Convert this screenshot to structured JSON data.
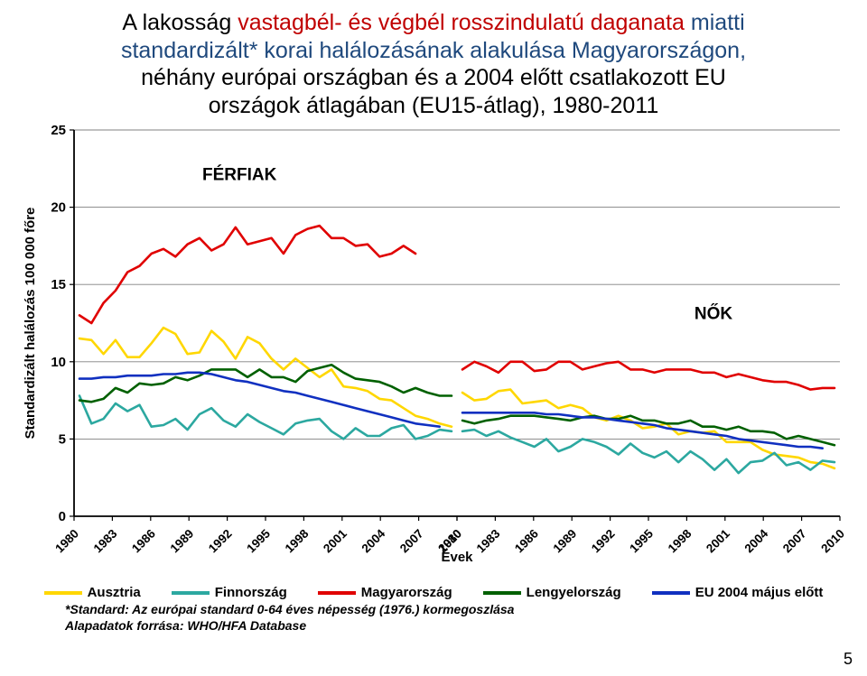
{
  "title_parts": [
    {
      "text": "A lakosság ",
      "color": "#000000"
    },
    {
      "text": "vastagbél- és végbél rosszindulatú daganata",
      "color": "#c00000"
    },
    {
      "text": " miatti",
      "color": "#1f497d"
    },
    {
      "text_break": true
    },
    {
      "text": "standardizált* korai halálozásának alakulása Magyarországon,",
      "color": "#1f497d"
    },
    {
      "text_break": true
    },
    {
      "text": "néhány európai országban ",
      "color": "#000000"
    },
    {
      "text": "és a 2004 előtt csatlakozott EU",
      "color": "#000000"
    },
    {
      "text_break": true
    },
    {
      "text": "országok átlagában (EU15-átlag), 1980-2011",
      "color": "#000000"
    }
  ],
  "axis": {
    "y_label": "Standardizált halálozás 100 000 főre",
    "x_label": "Évek",
    "ylim": [
      0,
      25
    ],
    "ytick_step": 5,
    "y_ticks": [
      0,
      5,
      10,
      15,
      20,
      25
    ],
    "grid_color": "#808080",
    "axis_color": "#000000",
    "tick_font": 15
  },
  "panels": {
    "left_label": "FÉRFIAK",
    "right_label": "NŐK"
  },
  "x_years": [
    1980,
    1983,
    1986,
    1989,
    1992,
    1995,
    1998,
    2001,
    2004,
    2007,
    2010
  ],
  "legend": [
    {
      "name": "Ausztria",
      "color": "#ffd700"
    },
    {
      "name": "Finnország",
      "color": "#2ca8a0"
    },
    {
      "name": "Magyarország",
      "color": "#e00000"
    },
    {
      "name": "Lengyelország",
      "color": "#006000"
    },
    {
      "name": "EU 2004 május előtt",
      "color": "#1030c0"
    }
  ],
  "series_style": {
    "line_width": 2.6,
    "axis_width": 1.8,
    "grid_width": 0.9
  },
  "series": {
    "left": {
      "Ausztria": [
        11.5,
        11.4,
        10.5,
        11.4,
        10.3,
        10.3,
        11.2,
        12.2,
        11.8,
        10.5,
        10.6,
        12.0,
        11.3,
        10.2,
        11.6,
        11.2,
        10.2,
        9.5,
        10.2,
        9.6,
        9.0,
        9.5,
        8.4,
        8.3,
        8.1,
        7.6,
        7.5,
        7.0,
        6.5,
        6.3,
        6.0,
        5.8
      ],
      "Finnország": [
        7.8,
        6.0,
        6.3,
        7.3,
        6.8,
        7.2,
        5.8,
        5.9,
        6.3,
        5.6,
        6.6,
        7.0,
        6.2,
        5.8,
        6.6,
        6.1,
        5.7,
        5.3,
        6.0,
        6.2,
        6.3,
        5.5,
        5.0,
        5.7,
        5.2,
        5.2,
        5.7,
        5.9,
        5.0,
        5.2,
        5.6,
        5.5
      ],
      "Magyarország": [
        13.0,
        12.5,
        13.8,
        14.6,
        15.8,
        16.2,
        17.0,
        17.3,
        16.8,
        17.6,
        18.0,
        17.2,
        17.6,
        18.7,
        17.6,
        17.8,
        18.0,
        17.0,
        18.2,
        18.6,
        18.8,
        18.0,
        18.0,
        17.5,
        17.6,
        16.8,
        17.0,
        17.5,
        17.0
      ],
      "Lengyelország": [
        7.5,
        7.4,
        7.6,
        8.3,
        8.0,
        8.6,
        8.5,
        8.6,
        9.0,
        8.8,
        9.1,
        9.5,
        9.5,
        9.5,
        9.0,
        9.5,
        9.0,
        9.0,
        8.7,
        9.4,
        9.6,
        9.8,
        9.3,
        8.9,
        8.8,
        8.7,
        8.4,
        8.0,
        8.3,
        8.0,
        7.8,
        7.8
      ],
      "EU2004": [
        8.9,
        8.9,
        9.0,
        9.0,
        9.1,
        9.1,
        9.1,
        9.2,
        9.2,
        9.3,
        9.3,
        9.2,
        9.0,
        8.8,
        8.7,
        8.5,
        8.3,
        8.1,
        8.0,
        7.8,
        7.6,
        7.4,
        7.2,
        7.0,
        6.8,
        6.6,
        6.4,
        6.2,
        6.0,
        5.9,
        5.8
      ]
    },
    "right": {
      "Ausztria": [
        8.0,
        7.5,
        7.6,
        8.1,
        8.2,
        7.3,
        7.4,
        7.5,
        7.0,
        7.2,
        7.0,
        6.4,
        6.2,
        6.5,
        6.2,
        5.7,
        5.8,
        6.0,
        5.3,
        5.5,
        5.4,
        5.5,
        4.8,
        4.8,
        4.8,
        4.3,
        4.0,
        3.9,
        3.8,
        3.5,
        3.4,
        3.1
      ],
      "Finnország": [
        5.5,
        5.6,
        5.2,
        5.5,
        5.1,
        4.8,
        4.5,
        5.0,
        4.2,
        4.5,
        5.0,
        4.8,
        4.5,
        4.0,
        4.7,
        4.1,
        3.8,
        4.2,
        3.5,
        4.2,
        3.7,
        3.0,
        3.7,
        2.8,
        3.5,
        3.6,
        4.1,
        3.3,
        3.5,
        3.0,
        3.6,
        3.5
      ],
      "Magyarország": [
        9.5,
        10.0,
        9.7,
        9.3,
        10.0,
        10.0,
        9.4,
        9.5,
        10.0,
        10.0,
        9.5,
        9.7,
        9.9,
        10.0,
        9.5,
        9.5,
        9.3,
        9.5,
        9.5,
        9.5,
        9.3,
        9.3,
        9.0,
        9.2,
        9.0,
        8.8,
        8.7,
        8.7,
        8.5,
        8.2,
        8.3,
        8.3
      ],
      "Lengyelország": [
        6.2,
        6.0,
        6.2,
        6.3,
        6.5,
        6.5,
        6.5,
        6.4,
        6.3,
        6.2,
        6.4,
        6.5,
        6.3,
        6.3,
        6.5,
        6.2,
        6.2,
        6.0,
        6.0,
        6.2,
        5.8,
        5.8,
        5.6,
        5.8,
        5.5,
        5.5,
        5.4,
        5.0,
        5.2,
        5.0,
        4.8,
        4.6
      ],
      "EU2004": [
        6.7,
        6.7,
        6.7,
        6.7,
        6.7,
        6.7,
        6.7,
        6.6,
        6.6,
        6.5,
        6.4,
        6.4,
        6.3,
        6.2,
        6.1,
        6.0,
        5.9,
        5.7,
        5.6,
        5.5,
        5.4,
        5.3,
        5.2,
        5.0,
        4.9,
        4.8,
        4.7,
        4.6,
        4.5,
        4.5,
        4.4
      ]
    }
  },
  "footnote_lines": [
    "*Standard:  Az európai standard 0-64 éves népesség (1976.) kormegoszlása",
    "Alapadatok forrása: WHO/HFA Database"
  ],
  "page_number": "5"
}
